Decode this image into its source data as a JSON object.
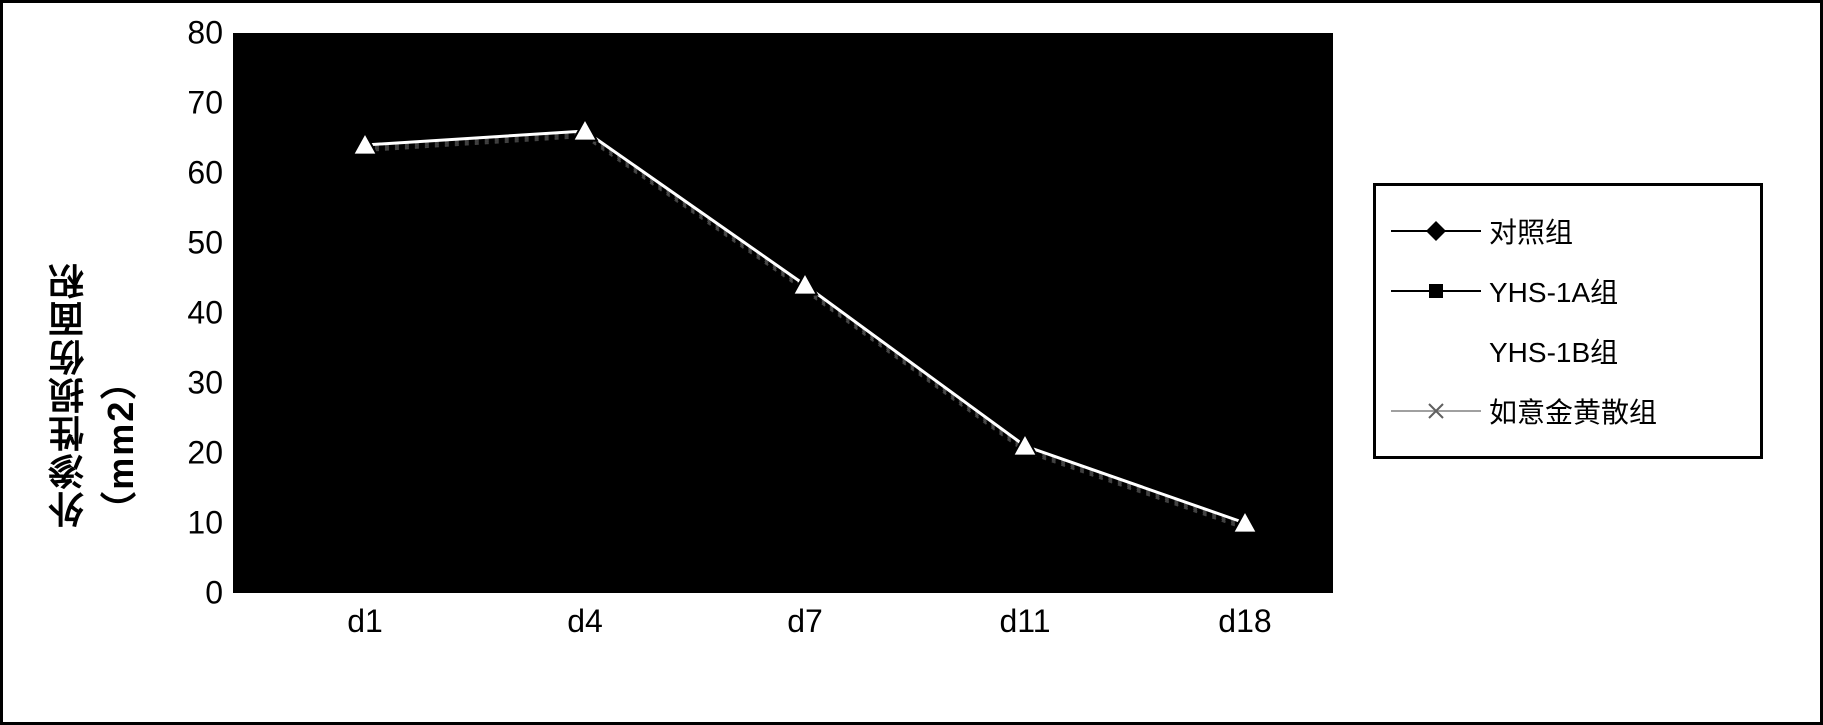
{
  "chart": {
    "type": "line",
    "background_color": "#ffffff",
    "plot_background_color": "#000000",
    "frame_border_color": "#000000",
    "y_axis_label": "外渗性损伤面积（mm2）",
    "y_axis_label_fontsize": 36,
    "tick_fontsize": 32,
    "legend_fontsize": 28,
    "x_categories": [
      "d1",
      "d4",
      "d7",
      "d11",
      "d18"
    ],
    "x_positions_pct": [
      12,
      32,
      52,
      72,
      92
    ],
    "y_min": 0,
    "y_max": 80,
    "y_tick_step": 10,
    "y_ticks": [
      0,
      10,
      20,
      30,
      40,
      50,
      60,
      70,
      80
    ],
    "series": [
      {
        "name": "对照组",
        "marker": "diamond",
        "marker_fill": "#000000",
        "line_color": "#ffffff",
        "values": [
          64,
          66,
          44,
          21,
          10
        ]
      },
      {
        "name": "YHS-1A组",
        "marker": "square",
        "marker_fill": "#000000",
        "line_color": "#d0d0d0",
        "values": [
          64,
          66,
          44,
          21,
          10
        ]
      },
      {
        "name": "YHS-1B组",
        "marker": "none",
        "marker_fill": "#808080",
        "line_color": "#b0b0b0",
        "values": [
          64,
          66,
          44,
          21,
          10
        ]
      },
      {
        "name": "如意金黄散组",
        "marker": "x",
        "marker_fill": "#808080",
        "line_color": "#c0c0c0",
        "values": [
          64,
          66,
          44,
          21,
          10
        ]
      }
    ],
    "visible_white_line_values": [
      64,
      66,
      44,
      21,
      10
    ],
    "visible_triangle_marker_values": [
      64,
      66,
      44,
      21,
      10
    ],
    "triangle_marker_color": "#ffffff",
    "triangle_marker_stroke": "#000000",
    "dotted_hint_color": "#808080"
  }
}
